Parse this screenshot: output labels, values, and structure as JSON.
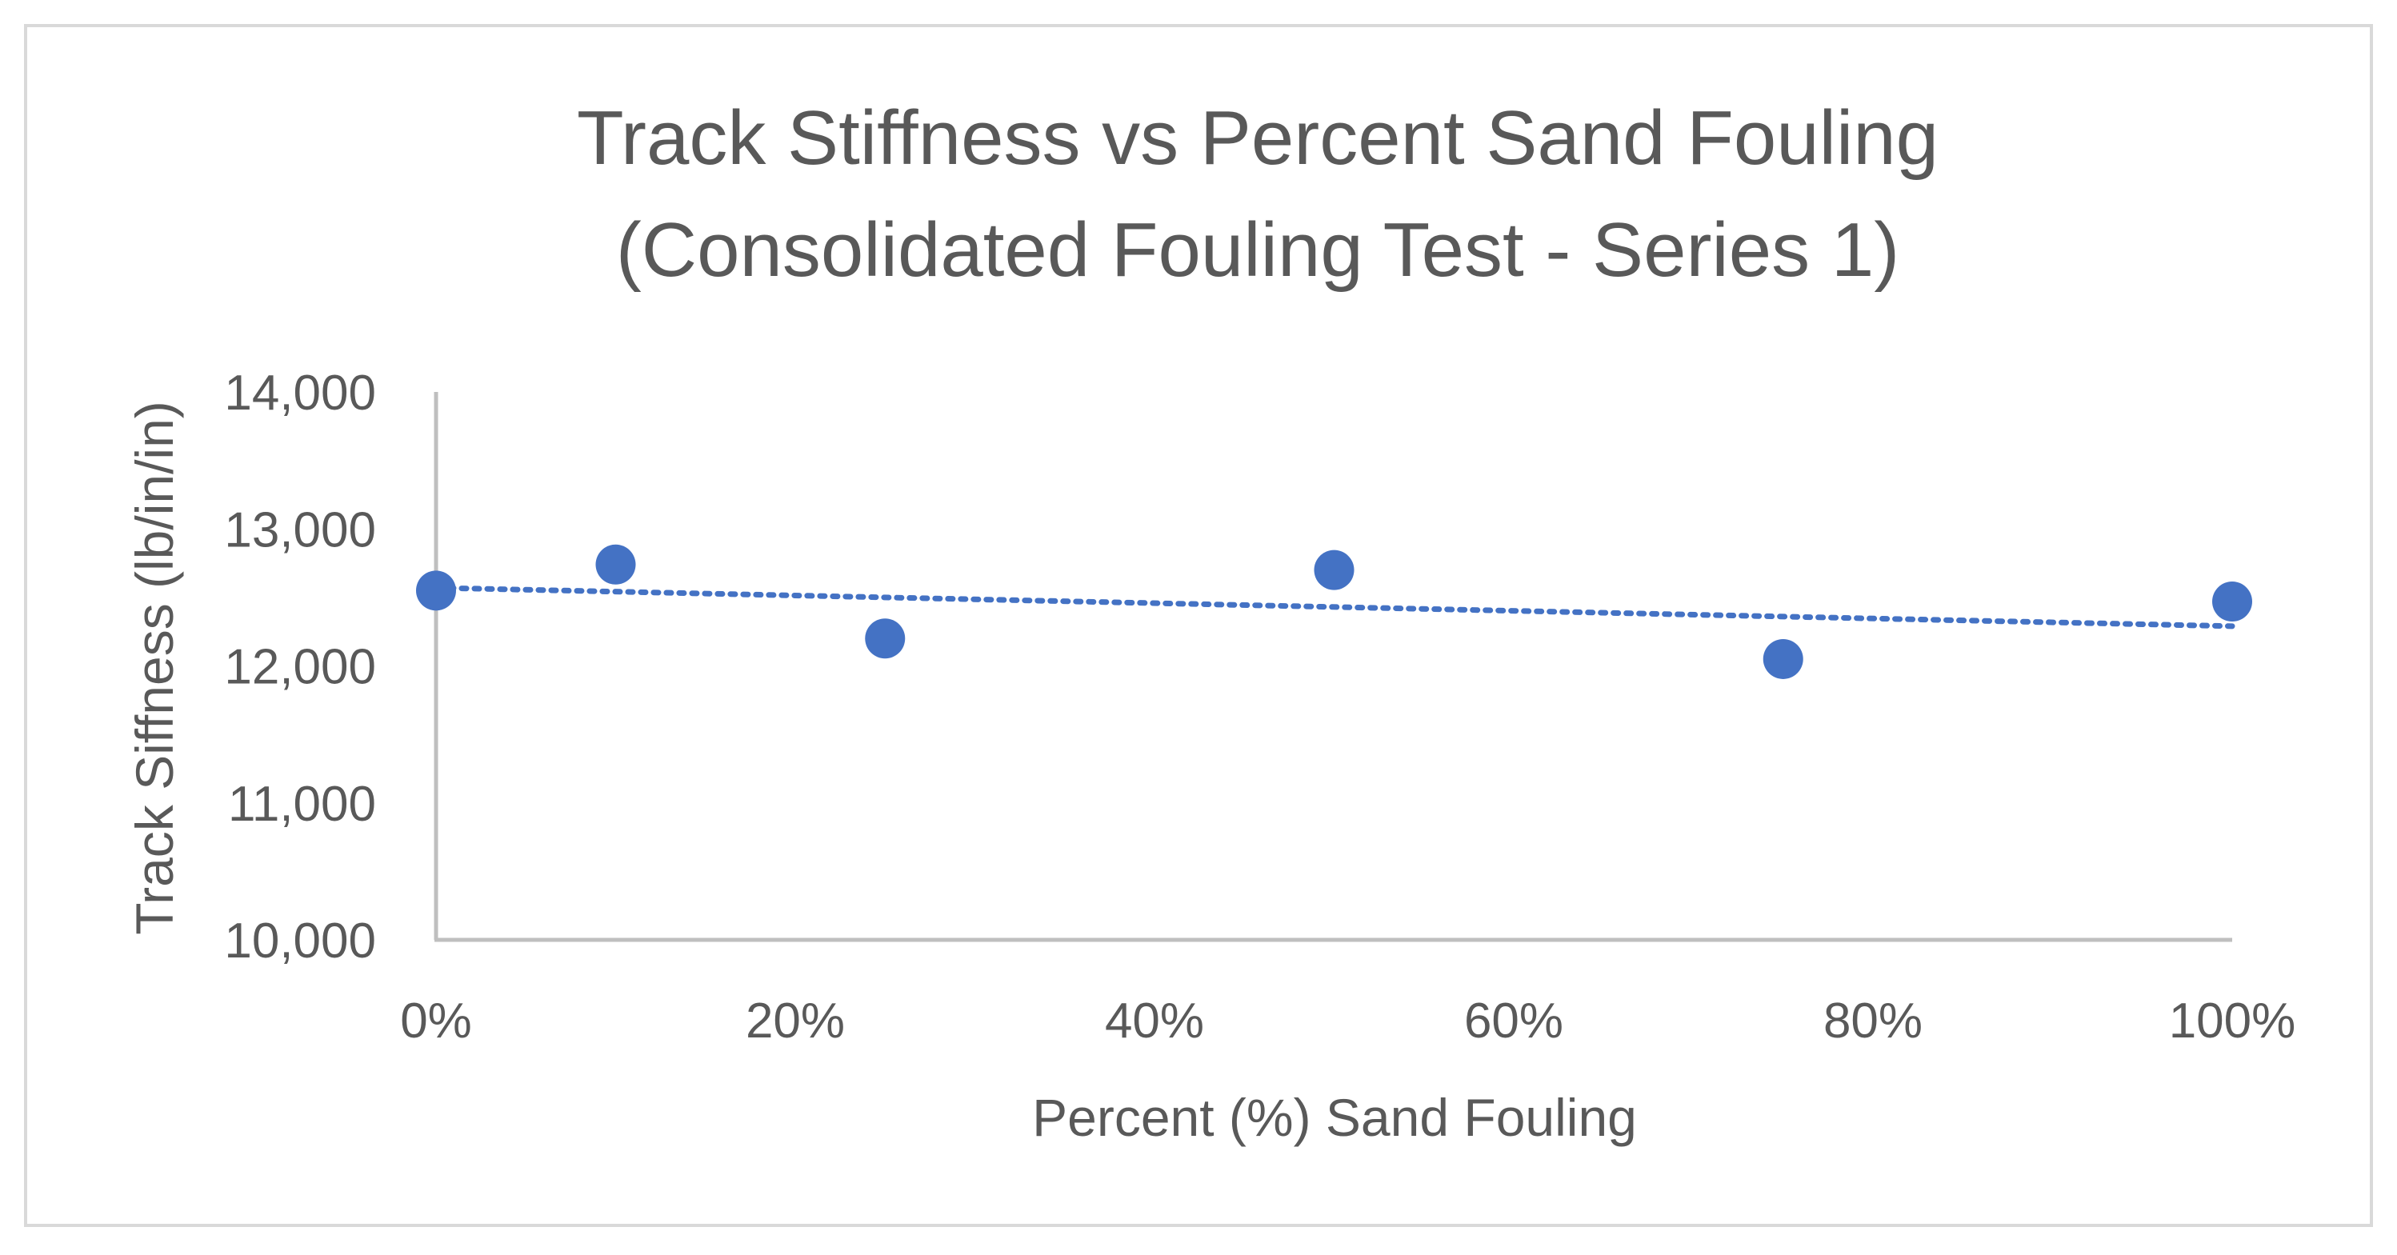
{
  "chart_data": {
    "type": "scatter",
    "title_lines": [
      "Track Stiffness vs Percent Sand Fouling",
      "(Consolidated Fouling Test - Series 1)"
    ],
    "xlabel": "Percent (%) Sand Fouling",
    "ylabel": "Track Siffness (lb/in/in)",
    "xlim": [
      0,
      100
    ],
    "ylim": [
      10000,
      14000
    ],
    "x_ticks": [
      0,
      20,
      40,
      60,
      80,
      100
    ],
    "x_tick_labels": [
      "0%",
      "20%",
      "40%",
      "60%",
      "80%",
      "100%"
    ],
    "y_ticks": [
      10000,
      11000,
      12000,
      13000,
      14000
    ],
    "y_tick_labels": [
      "10,000",
      "11,000",
      "12,000",
      "13,000",
      "14,000"
    ],
    "grid": false,
    "legend": "none",
    "series": [
      {
        "x": [
          0,
          10,
          25,
          50,
          75,
          100
        ],
        "y": [
          12550,
          12740,
          12200,
          12700,
          12050,
          12470
        ],
        "trendline": {
          "type": "linear",
          "style": "dotted",
          "start_y": 12570,
          "end_y": 12290
        }
      }
    ],
    "colors": {
      "marker": "#4472C4",
      "trendline": "#4472C4",
      "axis": "#BFBFBF",
      "text": "#595959",
      "border": "#D9D9D9"
    }
  }
}
